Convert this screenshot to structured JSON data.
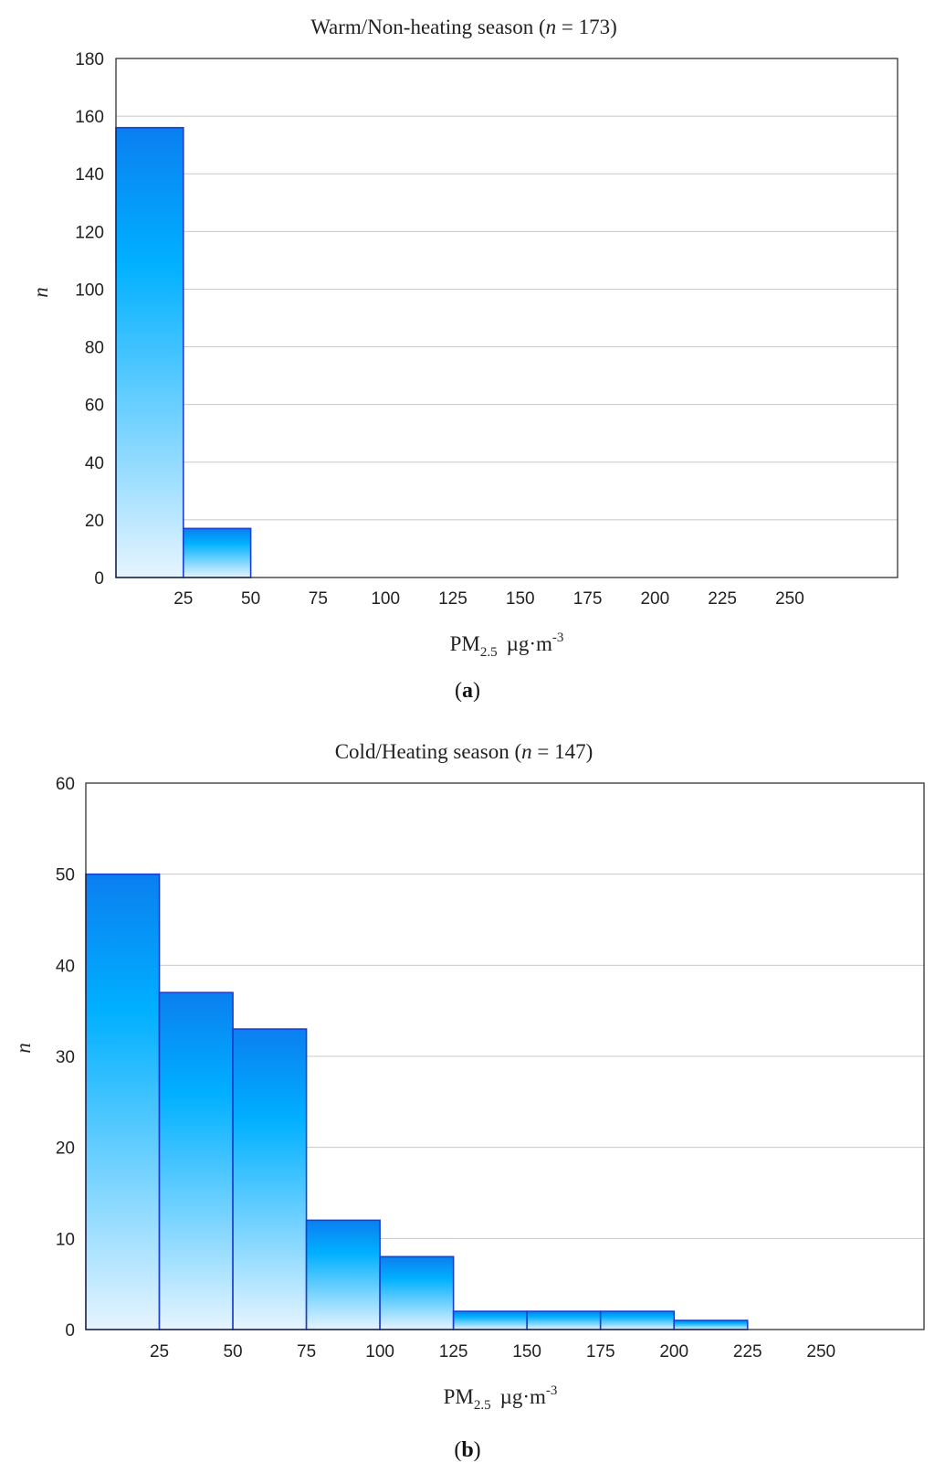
{
  "chart_data": [
    {
      "type": "bar",
      "panel_label": "a",
      "title": "Warm/Non-heating season",
      "title_n_symbol": "n",
      "title_n_text": " = 173)",
      "title_open": " (",
      "ylabel": "n",
      "xlabel_main": "PM",
      "xlabel_sub": "2.5",
      "xlabel_units": "µg·m",
      "xlabel_exp": "-3",
      "bin_width": 25,
      "x_range": [
        0,
        290
      ],
      "ylim": [
        0,
        180
      ],
      "yticks": [
        "0",
        "20",
        "40",
        "60",
        "80",
        "100",
        "120",
        "140",
        "160",
        "180"
      ],
      "xticks": [
        "25",
        "50",
        "75",
        "100",
        "125",
        "150",
        "175",
        "200",
        "225",
        "250"
      ],
      "bins": [
        {
          "start": 0,
          "end": 25,
          "value": 156
        },
        {
          "start": 25,
          "end": 50,
          "value": 17
        }
      ],
      "grid": true,
      "colors": {
        "top": "#0a7ff0",
        "mid": "#00b0ff",
        "bottom": "#e6f4ff",
        "edge": "#1d3fd0"
      }
    },
    {
      "type": "bar",
      "panel_label": "b",
      "title": "Cold/Heating season",
      "title_n_symbol": "n",
      "title_n_text": " = 147)",
      "title_open": " (",
      "ylabel": "n",
      "xlabel_main": "PM",
      "xlabel_sub": "2.5",
      "xlabel_units": "µg·m",
      "xlabel_exp": "-3",
      "bin_width": 25,
      "x_range": [
        0,
        285
      ],
      "ylim": [
        0,
        60
      ],
      "yticks": [
        "0",
        "10",
        "20",
        "30",
        "40",
        "50",
        "60"
      ],
      "xticks": [
        "25",
        "50",
        "75",
        "100",
        "125",
        "150",
        "175",
        "200",
        "225",
        "250"
      ],
      "bins": [
        {
          "start": 0,
          "end": 25,
          "value": 50
        },
        {
          "start": 25,
          "end": 50,
          "value": 37
        },
        {
          "start": 50,
          "end": 75,
          "value": 33
        },
        {
          "start": 75,
          "end": 100,
          "value": 12
        },
        {
          "start": 100,
          "end": 125,
          "value": 8
        },
        {
          "start": 125,
          "end": 150,
          "value": 2
        },
        {
          "start": 150,
          "end": 175,
          "value": 2
        },
        {
          "start": 175,
          "end": 200,
          "value": 2
        },
        {
          "start": 200,
          "end": 225,
          "value": 1
        }
      ],
      "grid": true,
      "colors": {
        "top": "#0a7ff0",
        "mid": "#00b0ff",
        "bottom": "#e6f4ff",
        "edge": "#1d3fd0"
      }
    }
  ]
}
